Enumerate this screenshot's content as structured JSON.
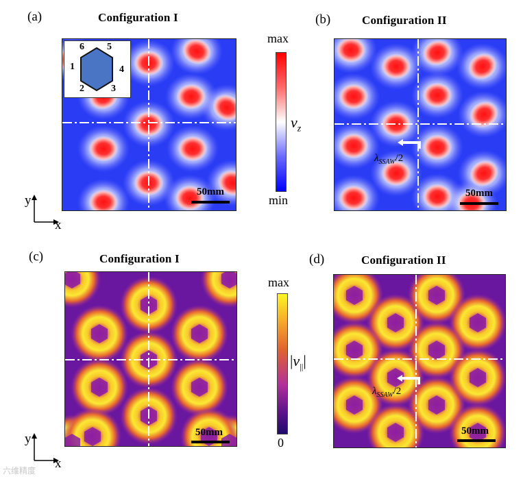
{
  "panels": [
    {
      "id": "a",
      "letter": "(a)",
      "title": "Configuration I",
      "scale_label": "50mm"
    },
    {
      "id": "b",
      "letter": "(b)",
      "title": "Configuration  II",
      "scale_label": "50mm",
      "annotation": "λSSAW/2"
    },
    {
      "id": "c",
      "letter": "(c)",
      "title": "Configuration I",
      "scale_label": "50mm"
    },
    {
      "id": "d",
      "letter": "(d)",
      "title": "Configuration  II",
      "scale_label": "50mm",
      "annotation": "λSSAW/2"
    }
  ],
  "colorbar_top": {
    "max_label": "max",
    "min_label": "min",
    "quantity": "v_z",
    "colors": [
      "#ff0000",
      "#ffffff",
      "#0000ff"
    ]
  },
  "colorbar_bottom": {
    "max_label": "max",
    "min_label": "0",
    "quantity": "|v_||",
    "colors": [
      "#fcf623",
      "#e0632f",
      "#8a1fa3",
      "#1f0b6b"
    ]
  },
  "inset": {
    "numbers": [
      "1",
      "2",
      "3",
      "4",
      "5",
      "6"
    ],
    "hexagon_color": "#4a74c4"
  },
  "axes": {
    "y": "y",
    "x": "x"
  },
  "watermark": "六维精度"
}
